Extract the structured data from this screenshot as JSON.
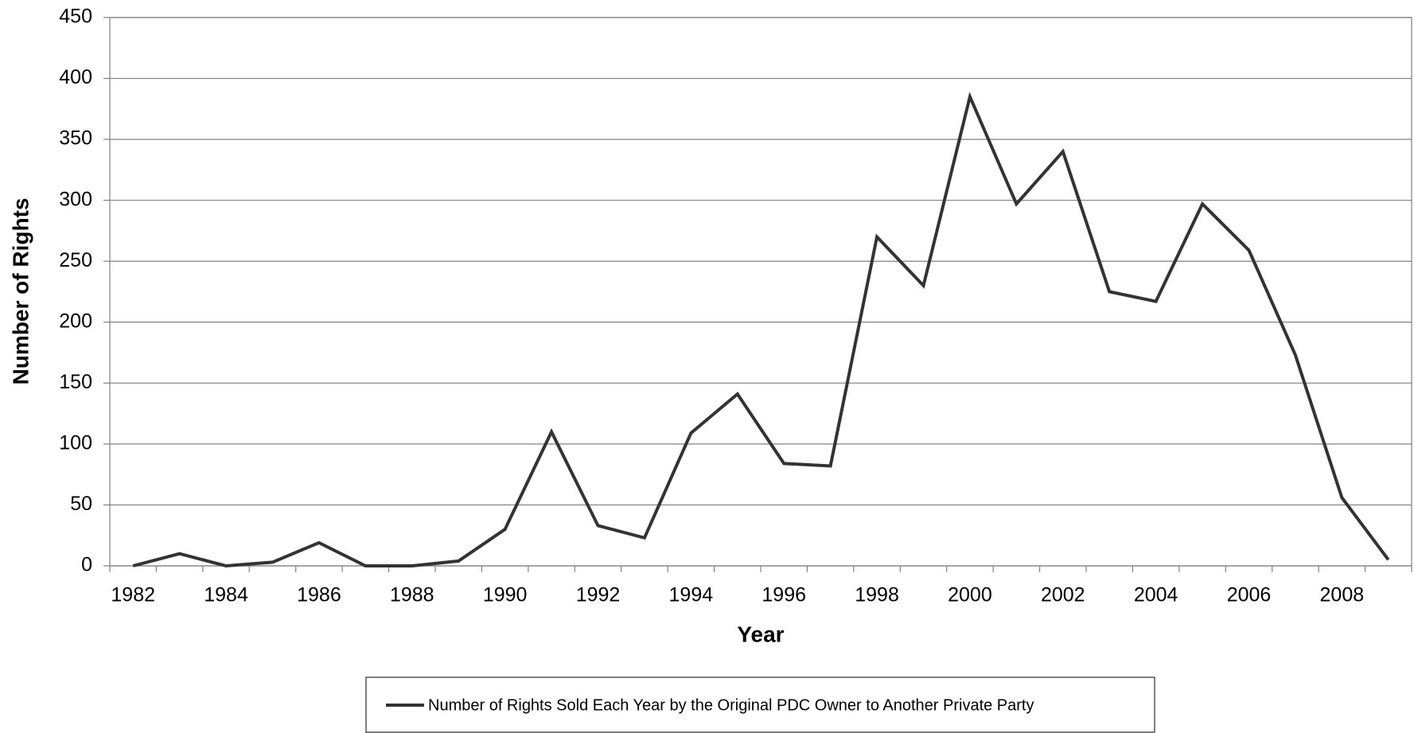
{
  "chart_data": {
    "type": "line",
    "x_label": "Year",
    "y_label": "Number of Rights",
    "categories": [
      "1982",
      null,
      "1984",
      null,
      "1986",
      null,
      "1988",
      null,
      "1990",
      null,
      "1992",
      null,
      "1994",
      null,
      "1996",
      null,
      "1998",
      null,
      "2000",
      null,
      "2002",
      null,
      "2004",
      null,
      "2006",
      null,
      "2008",
      null
    ],
    "series": [
      {
        "name": "Number of Rights Sold Each Year by the Original PDC Owner to Another Private Party",
        "color": "#333333",
        "values": [
          0,
          10,
          0,
          3,
          19,
          0,
          0,
          4,
          30,
          110,
          33,
          23,
          109,
          141,
          84,
          82,
          270,
          230,
          385,
          297,
          340,
          225,
          217,
          297,
          259,
          173,
          56,
          5
        ]
      }
    ],
    "ylim": [
      0,
      450
    ],
    "yticks": [
      0,
      50,
      100,
      150,
      200,
      250,
      300,
      350,
      400,
      450
    ],
    "grid": true,
    "legend": "bottom"
  }
}
